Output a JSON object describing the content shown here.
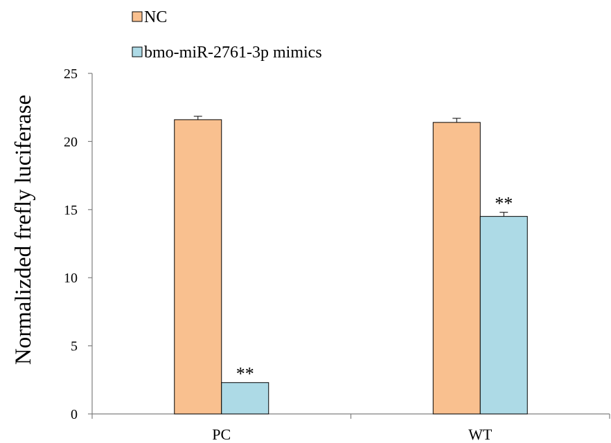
{
  "chart_data": {
    "type": "bar",
    "title": "",
    "xlabel": "",
    "ylabel": "Normalizded frefly luciferase",
    "ylim": [
      0,
      25
    ],
    "yticks": [
      0,
      5,
      10,
      15,
      20,
      25
    ],
    "categories": [
      "PC",
      "WT"
    ],
    "series": [
      {
        "name": "NC",
        "values": [
          21.6,
          21.4
        ],
        "errors": [
          0.25,
          0.3
        ],
        "color": "#F9C08F"
      },
      {
        "name": "bmo-miR-2761-3p mimics",
        "values": [
          2.3,
          14.5
        ],
        "errors": [
          0,
          0.3
        ],
        "color": "#ADDAE6"
      }
    ],
    "annotations": [
      {
        "category": "PC",
        "series": 1,
        "text": "**"
      },
      {
        "category": "WT",
        "series": 1,
        "text": "**"
      }
    ],
    "legend": "top-left",
    "grid": false
  }
}
